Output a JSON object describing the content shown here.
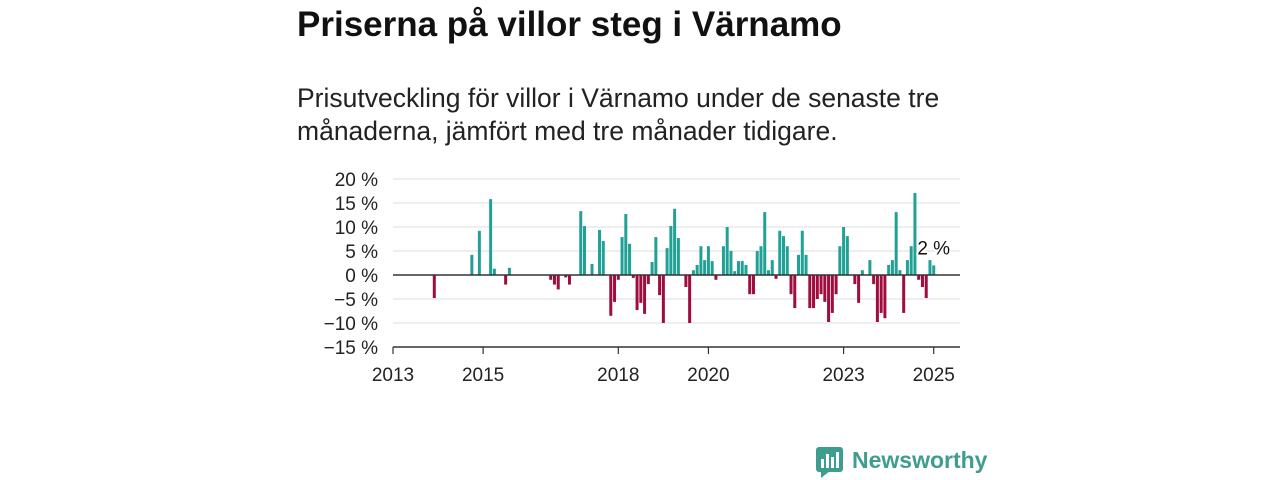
{
  "chart_data": {
    "type": "bar",
    "title": "Priserna på villor steg i Värnamo",
    "subtitle": "Prisutveckling för villor i Värnamo under de senaste tre månaderna, jämfört med tre månader tidigare.",
    "xlim": [
      "2013-01",
      "2025-08"
    ],
    "ylim": [
      -15,
      20
    ],
    "grid": true,
    "x_ticks": [
      {
        "date": "2013-01",
        "label": "2013"
      },
      {
        "date": "2015-01",
        "label": "2015"
      },
      {
        "date": "2018-01",
        "label": "2018"
      },
      {
        "date": "2020-01",
        "label": "2020"
      },
      {
        "date": "2023-01",
        "label": "2023"
      },
      {
        "date": "2025-01",
        "label": "2025"
      }
    ],
    "y_ticks": [
      {
        "value": 20,
        "label": "20 %"
      },
      {
        "value": 15,
        "label": "15 %"
      },
      {
        "value": 10,
        "label": "10 %"
      },
      {
        "value": 5,
        "label": "5 %"
      },
      {
        "value": 0,
        "label": "0 %"
      },
      {
        "value": -5,
        "label": "−5 %"
      },
      {
        "value": -10,
        "label": "−10 %"
      },
      {
        "value": -15,
        "label": "−15 %"
      }
    ],
    "x": [
      "2013-12",
      "2014-10",
      "2014-12",
      "2015-03",
      "2015-04",
      "2015-07",
      "2015-08",
      "2016-07",
      "2016-08",
      "2016-09",
      "2016-11",
      "2016-12",
      "2017-03",
      "2017-04",
      "2017-06",
      "2017-08",
      "2017-09",
      "2017-11",
      "2017-12",
      "2018-01",
      "2018-02",
      "2018-03",
      "2018-04",
      "2018-05",
      "2018-06",
      "2018-07",
      "2018-08",
      "2018-09",
      "2018-10",
      "2018-11",
      "2018-12",
      "2019-01",
      "2019-02",
      "2019-03",
      "2019-04",
      "2019-05",
      "2019-07",
      "2019-08",
      "2019-09",
      "2019-10",
      "2019-11",
      "2019-12",
      "2020-01",
      "2020-02",
      "2020-03",
      "2020-05",
      "2020-06",
      "2020-07",
      "2020-08",
      "2020-09",
      "2020-10",
      "2020-11",
      "2020-12",
      "2021-01",
      "2021-02",
      "2021-03",
      "2021-04",
      "2021-05",
      "2021-06",
      "2021-07",
      "2021-08",
      "2021-09",
      "2021-10",
      "2021-11",
      "2021-12",
      "2022-01",
      "2022-02",
      "2022-03",
      "2022-04",
      "2022-05",
      "2022-06",
      "2022-07",
      "2022-08",
      "2022-09",
      "2022-10",
      "2022-11",
      "2022-12",
      "2023-01",
      "2023-02",
      "2023-04",
      "2023-05",
      "2023-06",
      "2023-08",
      "2023-09",
      "2023-10",
      "2023-11",
      "2023-12",
      "2024-01",
      "2024-02",
      "2024-03",
      "2024-04",
      "2024-05",
      "2024-06",
      "2024-07",
      "2024-08",
      "2024-09",
      "2024-10",
      "2024-11",
      "2024-12",
      "2025-01"
    ],
    "values": [
      -4.8,
      4.2,
      9.2,
      15.8,
      1.3,
      -2.0,
      1.5,
      -1.0,
      -2.0,
      -3.0,
      -0.5,
      -2.0,
      13.3,
      10.2,
      2.3,
      9.4,
      7.1,
      -8.5,
      -5.6,
      -1.0,
      7.9,
      12.7,
      6.5,
      -0.6,
      -7.3,
      -5.8,
      -8.1,
      -1.9,
      2.7,
      7.9,
      -4.2,
      -10.0,
      5.6,
      10.2,
      13.8,
      7.7,
      -2.5,
      -10.0,
      1.0,
      2.1,
      6.0,
      3.1,
      6.0,
      2.9,
      -1.0,
      6.0,
      10.0,
      5.0,
      0.8,
      2.9,
      2.9,
      2.1,
      -4.0,
      -4.0,
      5.0,
      6.0,
      13.1,
      1.0,
      3.1,
      -0.8,
      9.2,
      8.1,
      6.0,
      -4.0,
      -6.9,
      4.2,
      9.2,
      4.2,
      -6.9,
      -6.9,
      -5.0,
      -4.0,
      -5.6,
      -9.8,
      -7.9,
      -4.0,
      6.0,
      10.0,
      8.1,
      -1.9,
      -5.8,
      1.0,
      3.1,
      -1.9,
      -9.8,
      -7.9,
      -9.0,
      2.1,
      3.1,
      13.1,
      1.0,
      -7.9,
      3.1,
      6.0,
      17.1,
      -1.0,
      -2.5,
      -4.8,
      3.1,
      2.0
    ],
    "annotation": {
      "date": "2025-01",
      "label": "2 %"
    },
    "colors": {
      "positive": "#21a196",
      "negative": "#9e0d3e",
      "zero_line": "#333333",
      "axis": "#333333",
      "grid": "#dddddd"
    }
  },
  "logo": {
    "icon": "newsworthy-chart-icon",
    "text": "Newsworthy",
    "color": "#3f9d8f"
  }
}
